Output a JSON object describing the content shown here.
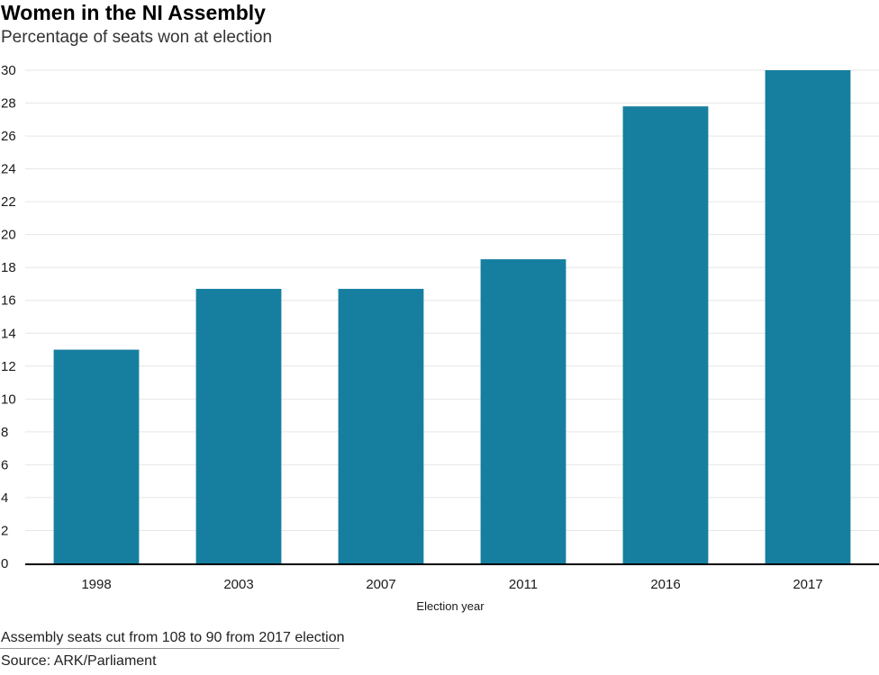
{
  "header": {
    "title": "Women in the NI Assembly",
    "subtitle": "Percentage of seats won at election"
  },
  "footer": {
    "note": "Assembly seats cut from 108 to 90 from 2017 election",
    "source": "Source: ARK/Parliament"
  },
  "colors": {
    "bar": "#167fa0",
    "axis": "#000000",
    "grid": "#e6e6e6"
  },
  "chart_data": {
    "type": "bar",
    "title": "Women in the NI Assembly",
    "subtitle": "Percentage of seats won at election",
    "xlabel": "Election  year",
    "ylabel": "",
    "categories": [
      "1998",
      "2003",
      "2007",
      "2011",
      "2016",
      "2017"
    ],
    "values": [
      13,
      16.7,
      16.7,
      18.5,
      27.8,
      30
    ],
    "ylim": [
      0,
      30
    ],
    "yticks": [
      0,
      2,
      4,
      6,
      8,
      10,
      12,
      14,
      16,
      18,
      20,
      22,
      24,
      26,
      28,
      30
    ],
    "grid": true,
    "legend": "none"
  }
}
